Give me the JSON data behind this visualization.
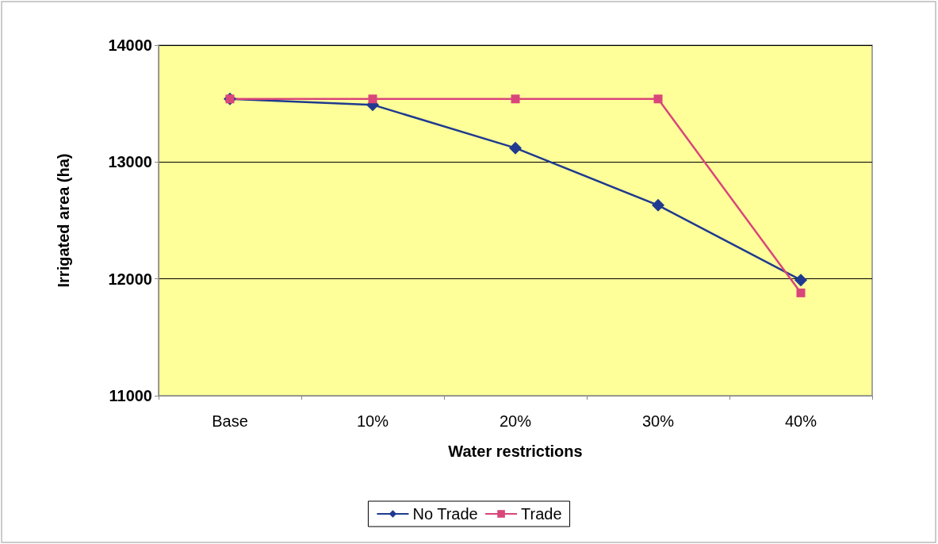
{
  "chart_data": {
    "type": "line",
    "xlabel": "Water restrictions",
    "ylabel": "Irrigated area (ha)",
    "categories": [
      "Base",
      "10%",
      "20%",
      "30%",
      "40%"
    ],
    "series": [
      {
        "name": "No Trade",
        "color": "#1f3a8f",
        "marker": "diamond",
        "values": [
          13540,
          13490,
          13120,
          12630,
          11990
        ]
      },
      {
        "name": "Trade",
        "color": "#d9467a",
        "marker": "square",
        "values": [
          13540,
          13540,
          13540,
          13540,
          11880
        ]
      }
    ],
    "ylim": [
      11000,
      14000
    ],
    "yticks": [
      11000,
      12000,
      13000,
      14000
    ],
    "grid": "y",
    "legend": "bottom"
  }
}
